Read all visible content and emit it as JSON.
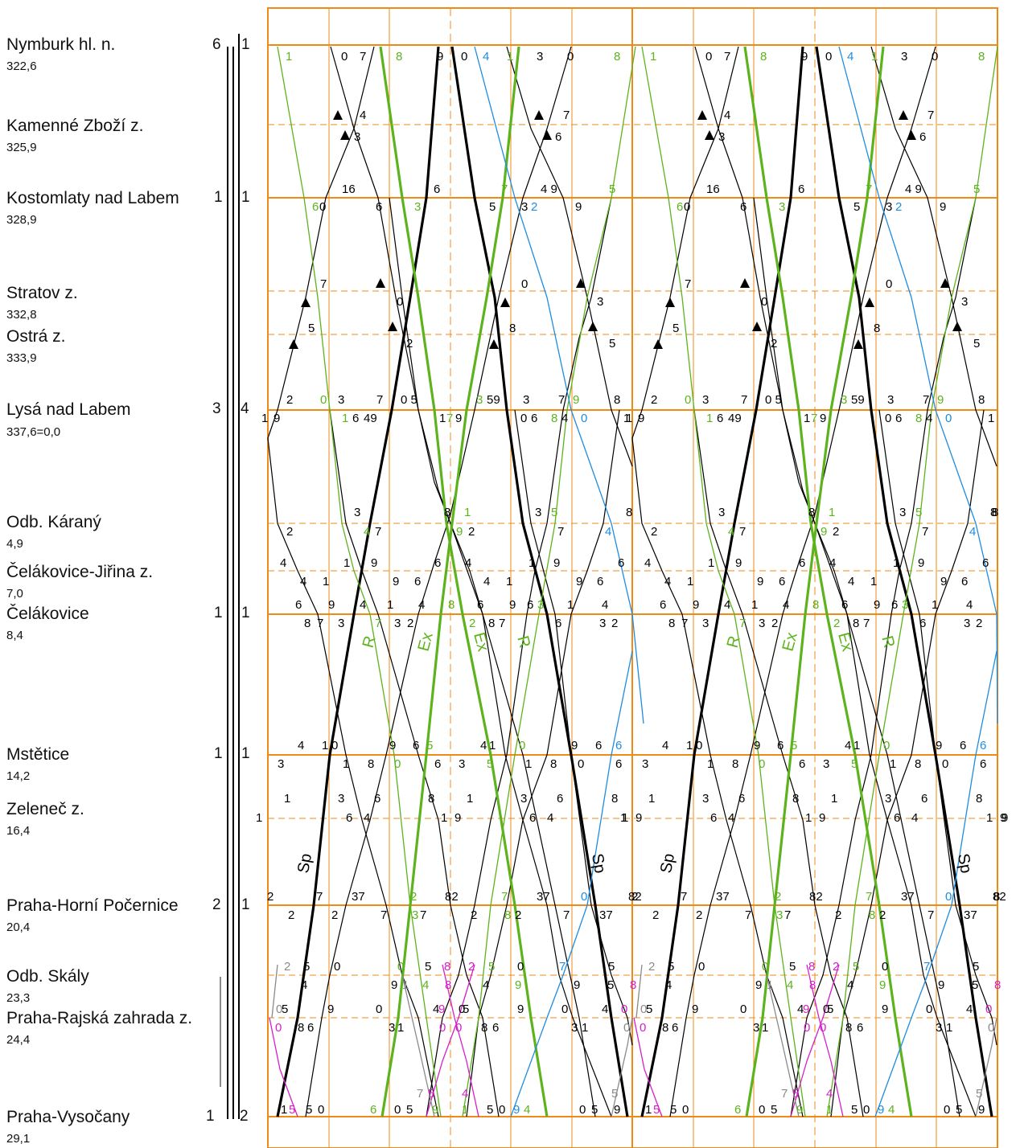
{
  "stations": [
    {
      "name": "Nymburk hl. n.",
      "km": "322,6",
      "tracks_left": "6",
      "tracks_right": "1"
    },
    {
      "name": "Kamenné Zboží z.",
      "km": "325,9",
      "tracks_left": "",
      "tracks_right": ""
    },
    {
      "name": "Kostomlaty nad Labem",
      "km": "328,9",
      "tracks_left": "1",
      "tracks_right": "1"
    },
    {
      "name": "Stratov z.",
      "km": "332,8",
      "tracks_left": "",
      "tracks_right": ""
    },
    {
      "name": "Ostrá z.",
      "km": "333,9",
      "tracks_left": "",
      "tracks_right": ""
    },
    {
      "name": "Lysá nad Labem",
      "km": "337,6=0,0",
      "tracks_left": "3",
      "tracks_right": "4"
    },
    {
      "name": "Odb. Káraný",
      "km": "4,9",
      "tracks_left": "",
      "tracks_right": ""
    },
    {
      "name": "Čelákovice-Jiřina z.",
      "km": "7,0",
      "tracks_left": "",
      "tracks_right": ""
    },
    {
      "name": "Čelákovice",
      "km": "8,4",
      "tracks_left": "1",
      "tracks_right": "1"
    },
    {
      "name": "Mstětice",
      "km": "14,2",
      "tracks_left": "1",
      "tracks_right": "1"
    },
    {
      "name": "Zeleneč z.",
      "km": "16,4",
      "tracks_left": "",
      "tracks_right": ""
    },
    {
      "name": "Praha-Horní Počernice",
      "km": "20,4",
      "tracks_left": "2",
      "tracks_right": "1"
    },
    {
      "name": "Odb. Skály",
      "km": "23,3",
      "tracks_left": "",
      "tracks_right": ""
    },
    {
      "name": "Praha-Rajská zahrada z.",
      "km": "24,4",
      "tracks_left": "",
      "tracks_right": ""
    },
    {
      "name": "Praha-Vysočany",
      "km": "29,1",
      "tracks_left": "1",
      "tracks_right": "2"
    }
  ],
  "train_type_labels": [
    {
      "text": "R",
      "color": "#5cb31d"
    },
    {
      "text": "Ex",
      "color": "#5cb31d"
    },
    {
      "text": "Ex",
      "color": "#5cb31d"
    },
    {
      "text": "R",
      "color": "#5cb31d"
    },
    {
      "text": "R",
      "color": "#5cb31d"
    },
    {
      "text": "Ex",
      "color": "#5cb31d"
    },
    {
      "text": "Ex",
      "color": "#5cb31d"
    },
    {
      "text": "R",
      "color": "#5cb31d"
    },
    {
      "text": "Sp",
      "color": "#000000"
    },
    {
      "text": "Sp",
      "color": "#000000"
    },
    {
      "text": "Sp",
      "color": "#000000"
    },
    {
      "text": "Sp",
      "color": "#000000"
    }
  ],
  "colors": {
    "grid": "#ef8a17",
    "regional": "#000000",
    "express": "#5cb31d",
    "freight": "#1f8ce0",
    "suburban": "#d61fc8",
    "other": "#8a8a8a"
  }
}
